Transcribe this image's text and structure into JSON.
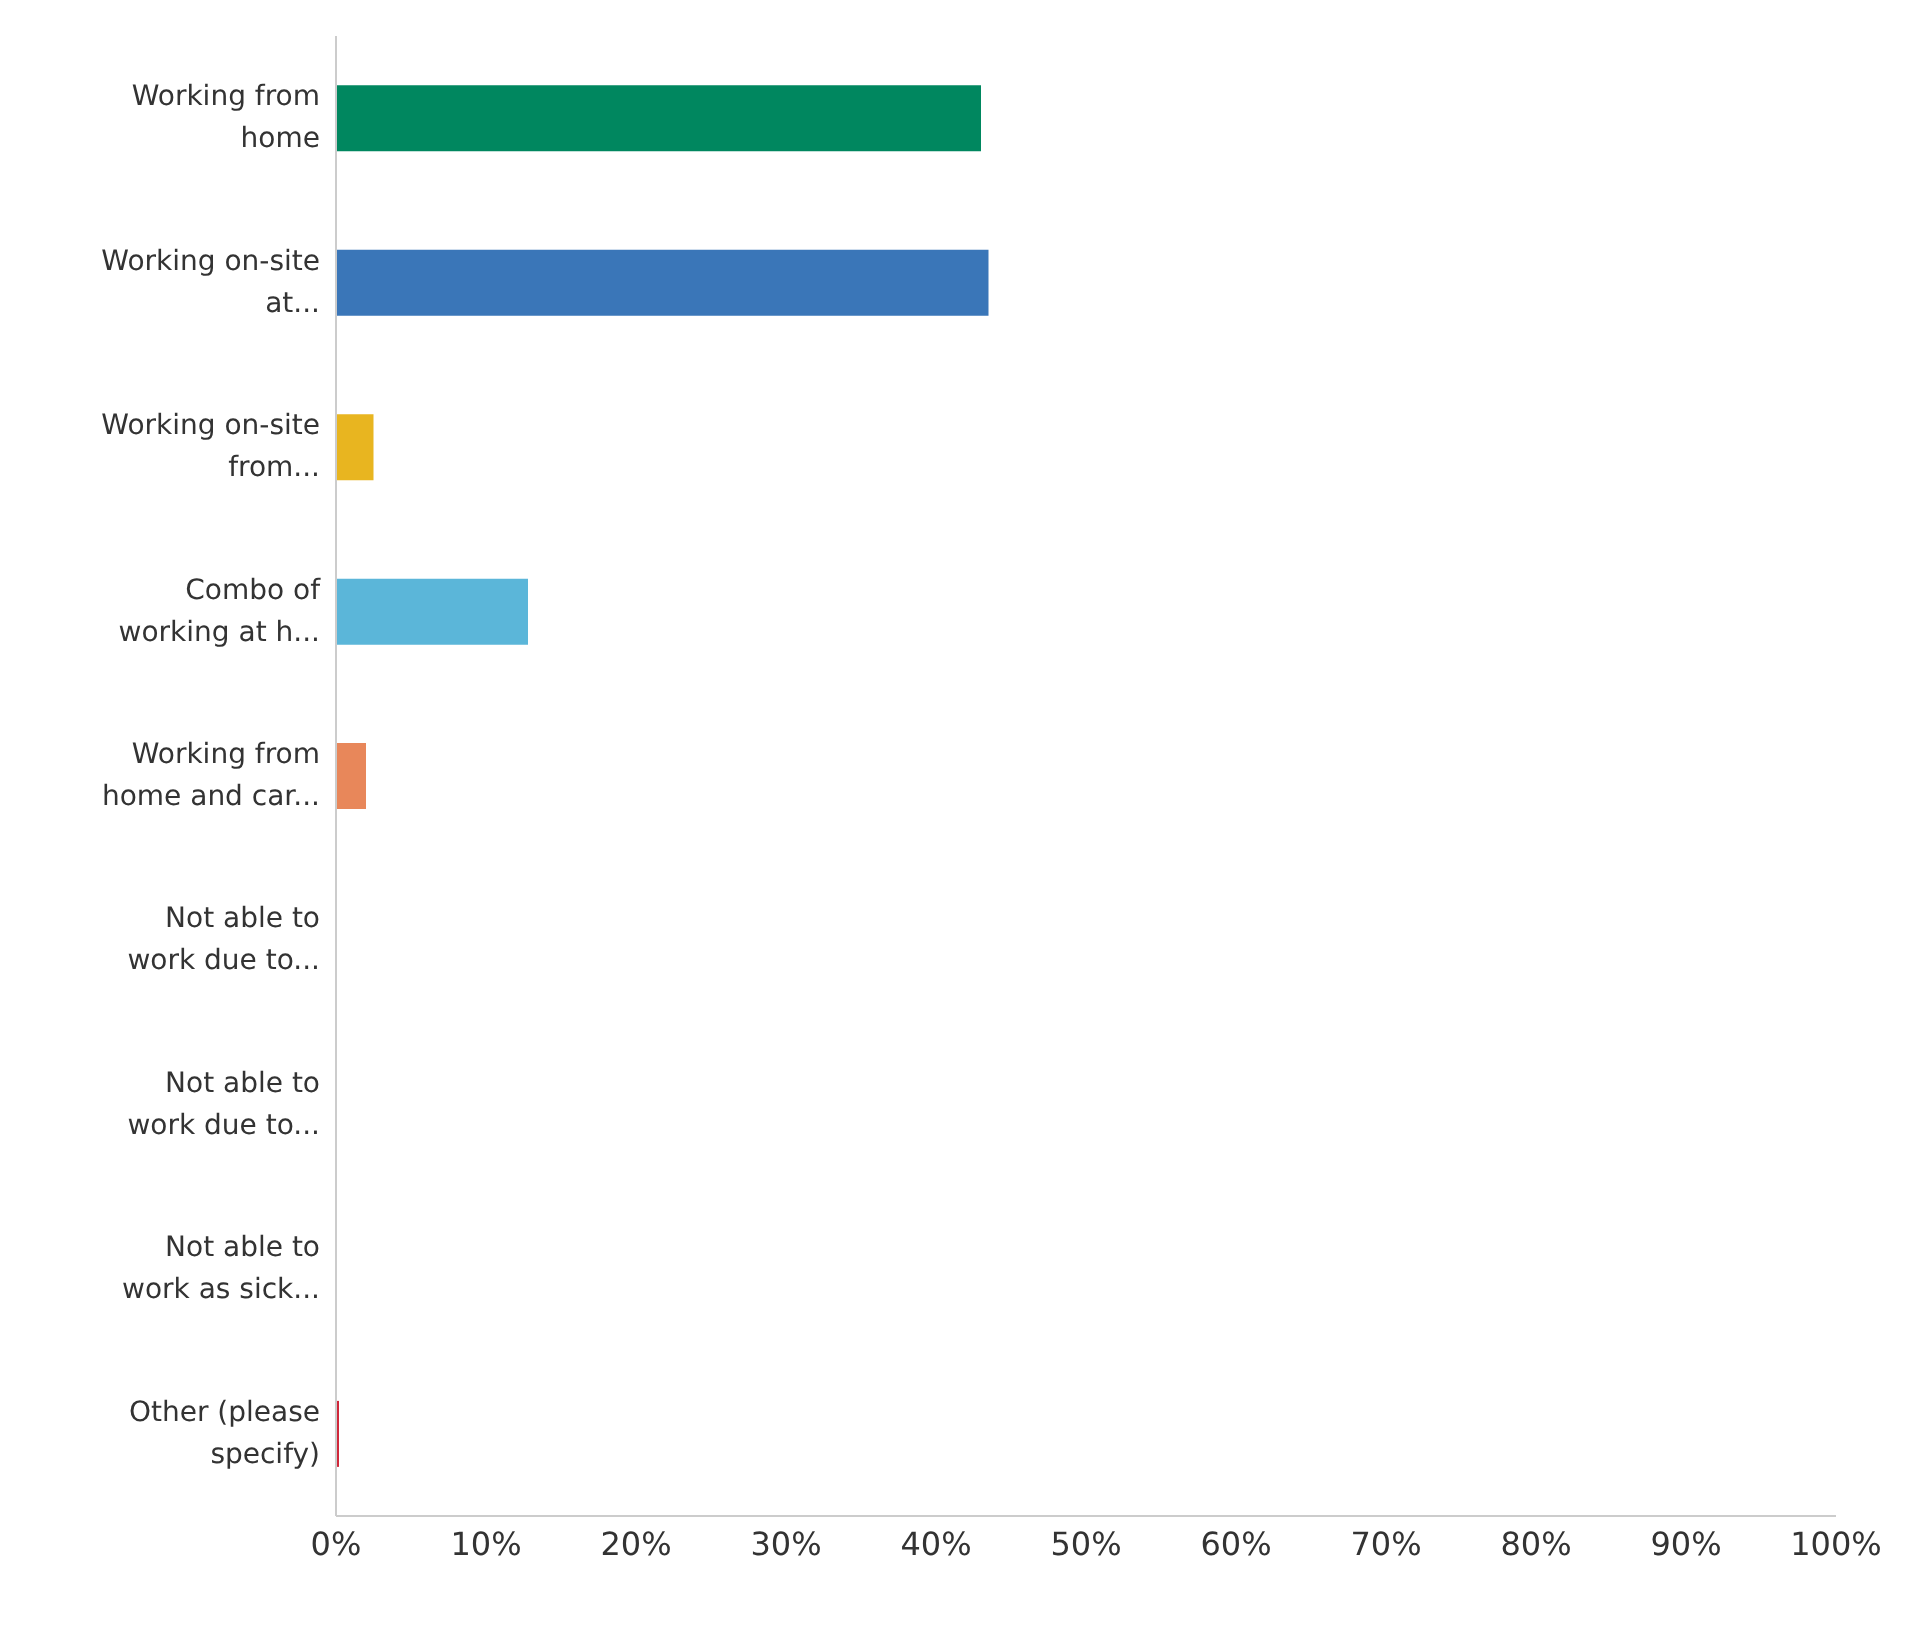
{
  "chart_data": {
    "type": "bar",
    "orientation": "horizontal",
    "categories": [
      "Working from home",
      "Working on-site at...",
      "Working on-site from...",
      "Combo of working at h...",
      "Working from home and car...",
      "Not able to work due to...",
      "Not able to work due to...",
      "Not able to work as sick...",
      "Other (please specify)"
    ],
    "values": [
      43,
      43.5,
      2.5,
      12.8,
      2,
      0,
      0,
      0,
      0.2
    ],
    "colors": [
      "#00875f",
      "#3a76b8",
      "#e8b520",
      "#5bb6d9",
      "#e8875a",
      "#8b6fb5",
      "#a0a0a0",
      "#6fb36f",
      "#d0273a"
    ],
    "xlim": [
      0,
      100
    ],
    "xticks": [
      {
        "value": 0,
        "label": "0%"
      },
      {
        "value": 10,
        "label": "10%"
      },
      {
        "value": 20,
        "label": "20%"
      },
      {
        "value": 30,
        "label": "30%"
      },
      {
        "value": 40,
        "label": "40%"
      },
      {
        "value": 50,
        "label": "50%"
      },
      {
        "value": 60,
        "label": "60%"
      },
      {
        "value": 70,
        "label": "70%"
      },
      {
        "value": 80,
        "label": "80%"
      },
      {
        "value": 90,
        "label": "90%"
      },
      {
        "value": 100,
        "label": "100%"
      }
    ],
    "grid": false,
    "legend": false
  }
}
